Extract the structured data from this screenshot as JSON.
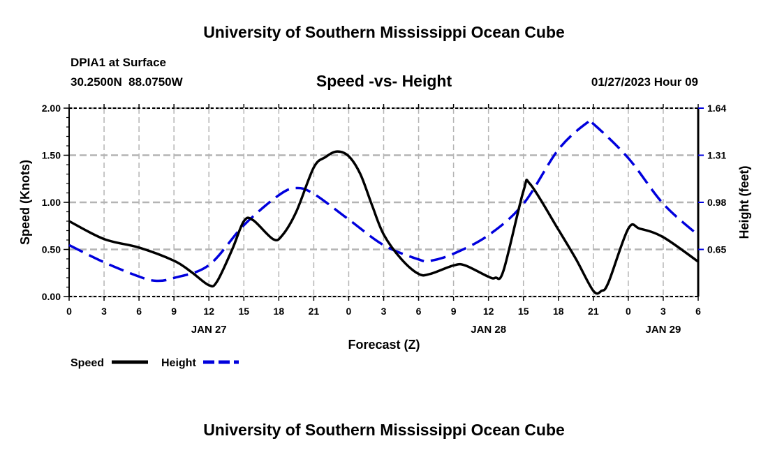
{
  "header": {
    "title": "University of Southern Mississippi Ocean Cube",
    "station": "DPIA1 at Surface",
    "location": "30.2500N  88.0750W",
    "chart_title": "Speed -vs- Height",
    "datetime": "01/27/2023 Hour 09"
  },
  "footer": {
    "title": "University of Southern Mississippi Ocean Cube"
  },
  "legend": {
    "speed_label": "Speed",
    "height_label": "Height"
  },
  "colors": {
    "speed": "#000000",
    "height": "#0000dd",
    "grid": "#b4b4b4"
  },
  "chart_data": {
    "type": "line",
    "title": "Speed -vs- Height",
    "xlabel": "Forecast (Z)",
    "ylabel": "Speed (Knots)",
    "y2label": "Height (feet)",
    "xlim": [
      0,
      54
    ],
    "ylim": [
      0,
      2.0
    ],
    "y2lim": [
      0.32,
      1.64
    ],
    "grid": true,
    "legend_position": "bottom-left",
    "x_ticks": [
      0,
      3,
      6,
      9,
      12,
      15,
      18,
      21,
      24,
      27,
      30,
      33,
      36,
      39,
      42,
      45,
      48,
      51,
      54
    ],
    "x_tick_labels": [
      "0",
      "3",
      "6",
      "9",
      "12",
      "15",
      "18",
      "21",
      "0",
      "3",
      "6",
      "9",
      "12",
      "15",
      "18",
      "21",
      "0",
      "3",
      "6"
    ],
    "date_labels": [
      {
        "hour": 12,
        "label": "JAN 27"
      },
      {
        "hour": 36,
        "label": "JAN 28"
      },
      {
        "hour": 51,
        "label": "JAN 29"
      }
    ],
    "y_ticks": [
      0,
      0.5,
      1.0,
      1.5,
      2.0
    ],
    "y_tick_labels": [
      "0.00",
      "0.50",
      "1.00",
      "1.50",
      "2.00"
    ],
    "y2_ticks": [
      0.65,
      0.98,
      1.31,
      1.64
    ],
    "y2_tick_labels": [
      "0.65",
      "0.98",
      "1.31",
      "1.64"
    ],
    "series": [
      {
        "name": "Speed",
        "units": "knots",
        "axis": "left",
        "x": [
          0,
          3,
          6,
          9,
          10.5,
          12,
          12.7,
          14,
          15,
          15.8,
          17.5,
          18.3,
          19.5,
          21,
          22,
          23,
          24,
          25,
          26,
          27,
          28.5,
          30,
          31,
          33,
          34,
          36,
          36.6,
          37.3,
          39,
          39.6,
          42,
          43.5,
          45,
          45.7,
          46.3,
          48,
          49,
          51,
          54
        ],
        "values": [
          0.8,
          0.61,
          0.52,
          0.38,
          0.26,
          0.12,
          0.16,
          0.5,
          0.8,
          0.81,
          0.61,
          0.65,
          0.9,
          1.37,
          1.48,
          1.54,
          1.49,
          1.3,
          0.97,
          0.66,
          0.4,
          0.24,
          0.24,
          0.33,
          0.33,
          0.21,
          0.2,
          0.28,
          1.12,
          1.19,
          0.71,
          0.4,
          0.06,
          0.06,
          0.15,
          0.72,
          0.72,
          0.63,
          0.37
        ]
      },
      {
        "name": "Height",
        "units": "feet",
        "axis": "right",
        "x": [
          0,
          3,
          6,
          7.5,
          9,
          12,
          15,
          18,
          19.5,
          21,
          24,
          27,
          30,
          31,
          33,
          36,
          39,
          42,
          44.5,
          45,
          48,
          51,
          54
        ],
        "values": [
          0.68,
          0.56,
          0.46,
          0.43,
          0.45,
          0.54,
          0.82,
          1.03,
          1.08,
          1.04,
          0.86,
          0.68,
          0.58,
          0.57,
          0.62,
          0.75,
          0.97,
          1.35,
          1.54,
          1.53,
          1.29,
          0.97,
          0.75
        ]
      }
    ]
  }
}
